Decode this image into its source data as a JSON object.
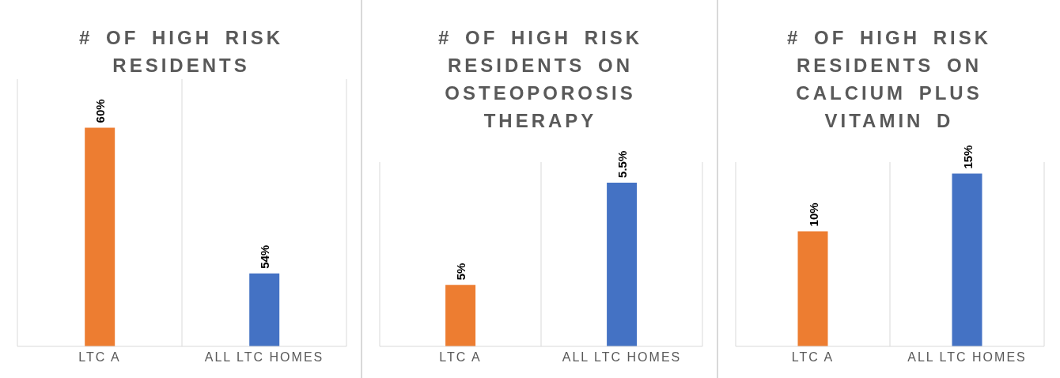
{
  "chart_data": [
    {
      "type": "bar",
      "title": "# OF HIGH RISK RESIDENTS",
      "categories": [
        "LTC A",
        "ALL LTC HOMES"
      ],
      "values": [
        60,
        54
      ],
      "colors": [
        "#ed7d31",
        "#4472c4"
      ],
      "value_labels": [
        "60%",
        "54%"
      ],
      "ylim": [
        51,
        62
      ],
      "grid": "x"
    },
    {
      "type": "bar",
      "title": "# OF HIGH RISK RESIDENTS ON OSTEOPOROSIS THERAPY",
      "categories": [
        "LTC A",
        "ALL LTC HOMES"
      ],
      "values": [
        5,
        5.5
      ],
      "colors": [
        "#ed7d31",
        "#4472c4"
      ],
      "value_labels": [
        "5%",
        "5.5%"
      ],
      "ylim": [
        4.7,
        5.6
      ],
      "grid": "x"
    },
    {
      "type": "bar",
      "title": "# OF HIGH RISK RESIDENTS ON CALCIUM PLUS VITAMIN D",
      "categories": [
        "LTC A",
        "ALL LTC HOMES"
      ],
      "values": [
        10,
        15
      ],
      "colors": [
        "#ed7d31",
        "#4472c4"
      ],
      "value_labels": [
        "10%",
        "15%"
      ],
      "ylim": [
        0,
        16
      ],
      "grid": "x"
    }
  ]
}
